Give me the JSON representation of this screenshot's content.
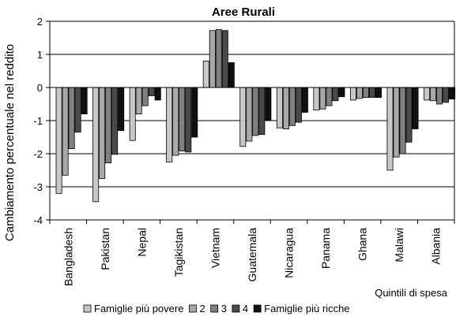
{
  "chart_data": {
    "type": "bar",
    "title": "Aree Rurali",
    "ylabel": "Cambiamento percentuale nel reddito",
    "xlabel": "Quintili di spesa",
    "ylim": [
      -4,
      2
    ],
    "yticks": [
      -4,
      -3,
      -2,
      -1,
      0,
      1,
      2
    ],
    "grid": true,
    "legend_position": "bottom",
    "categories": [
      "Bangladesh",
      "Pakistan",
      "Nepal",
      "Tagikistan",
      "Vietnam",
      "Guatemala",
      "Nicaragua",
      "Panama",
      "Ghana",
      "Malawi",
      "Albania"
    ],
    "series": [
      {
        "name": "Famiglie più povere",
        "color": "#c8c8c8",
        "values": [
          -3.2,
          -3.45,
          -1.6,
          -2.25,
          0.8,
          -1.78,
          -1.22,
          -0.68,
          -0.38,
          -2.5,
          -0.38
        ]
      },
      {
        "name": "2",
        "color": "#a8a8a8",
        "values": [
          -2.65,
          -2.75,
          -0.8,
          -2.05,
          1.72,
          -1.62,
          -1.25,
          -0.65,
          -0.33,
          -2.1,
          -0.4
        ]
      },
      {
        "name": "3",
        "color": "#808080",
        "values": [
          -1.85,
          -2.28,
          -0.55,
          -1.92,
          1.75,
          -1.45,
          -1.15,
          -0.55,
          -0.3,
          -2.0,
          -0.5
        ]
      },
      {
        "name": "4",
        "color": "#4a4a4a",
        "values": [
          -1.35,
          -2.02,
          -0.25,
          -1.95,
          1.72,
          -1.42,
          -1.05,
          -0.4,
          -0.3,
          -1.65,
          -0.45
        ]
      },
      {
        "name": "Famiglie più ricche",
        "color": "#101010",
        "values": [
          -0.8,
          -1.3,
          -0.38,
          -1.5,
          0.75,
          -1.0,
          -0.75,
          -0.28,
          -0.3,
          -1.25,
          -0.35
        ]
      }
    ]
  }
}
